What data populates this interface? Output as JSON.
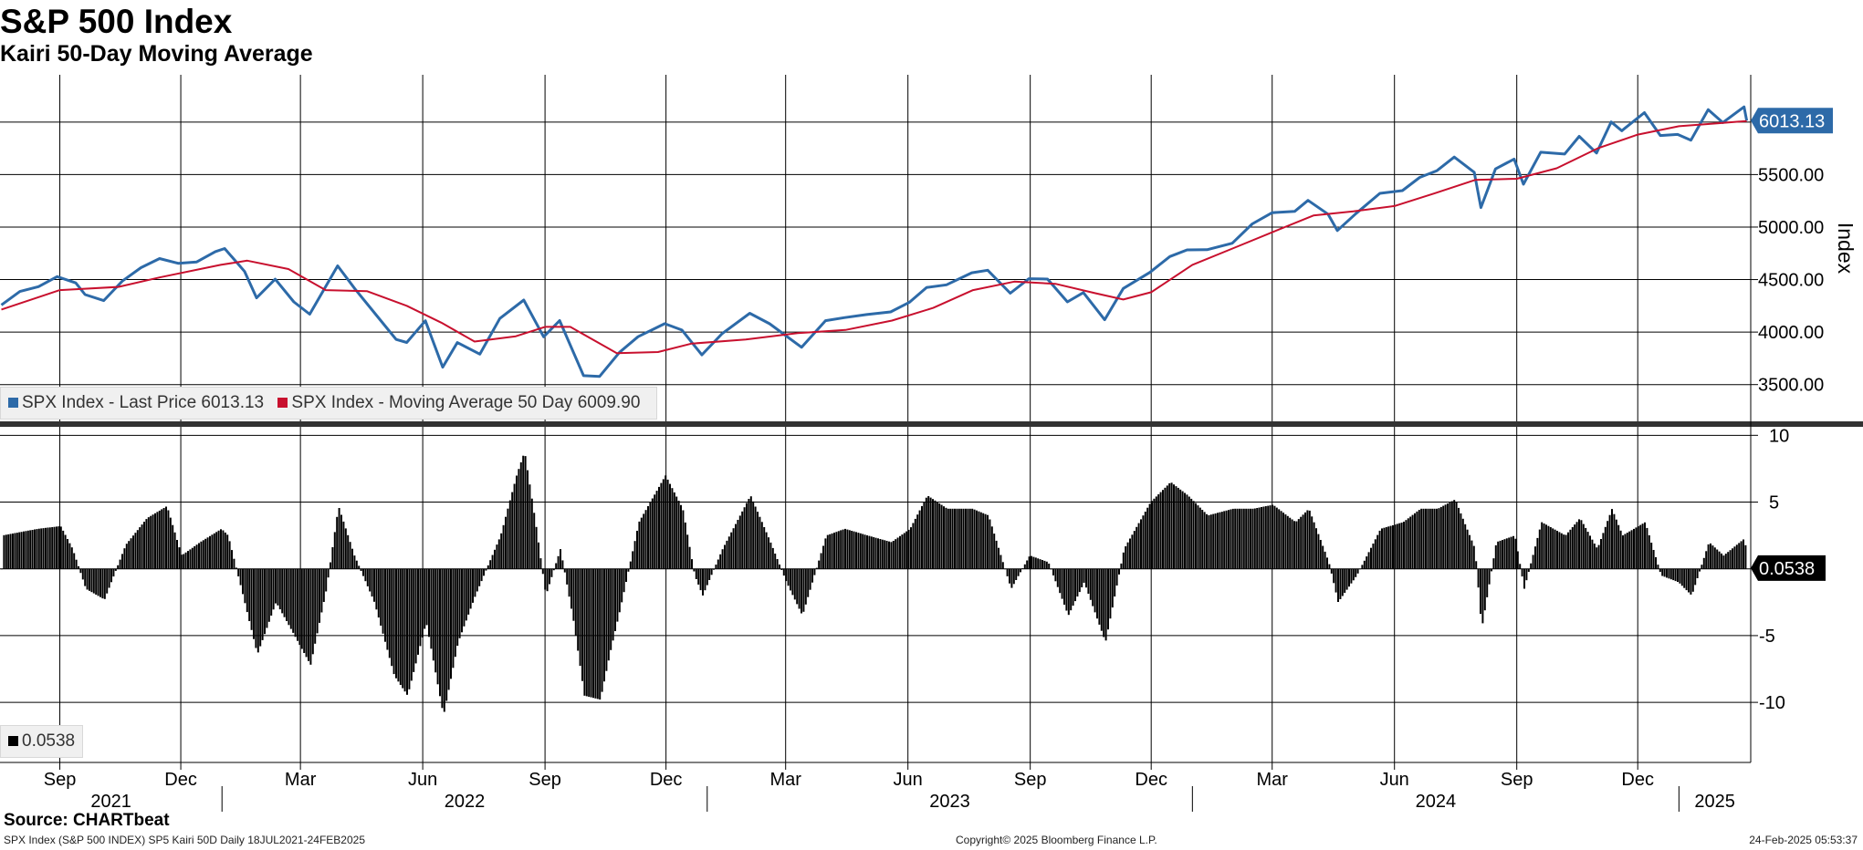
{
  "header": {
    "title": "S&P 500 Index",
    "subtitle": "Kairi 50-Day Moving Average"
  },
  "legend_top": {
    "items": [
      {
        "label": "SPX Index - Last Price 6013.13",
        "color": "#2d6aa8"
      },
      {
        "label": "SPX Index - Moving Average 50 Day 6009.90",
        "color": "#c8102e"
      }
    ]
  },
  "legend_bottom": {
    "items": [
      {
        "label": "0.0538",
        "color": "#000000"
      }
    ]
  },
  "footer": {
    "source": "Source: CHARTbeat",
    "left": "SPX Index (S&P 500 INDEX) SP5 Kairi 50D  Daily 18JUL2021-24FEB2025",
    "center": "Copyright© 2025 Bloomberg Finance L.P.",
    "right": "24-Feb-2025 05:53:37"
  },
  "chart_data": [
    {
      "type": "line",
      "ylabel": "Index",
      "ylim": [
        3150,
        6450
      ],
      "yticks": [
        "3500.00",
        "4000.00",
        "4500.00",
        "5000.00",
        "5500.00"
      ],
      "last_value_label": "6013.13",
      "last_value": 6013.13,
      "grid": true,
      "x_range": [
        "2021-07-18",
        "2025-02-24"
      ],
      "series": [
        {
          "name": "SPX Index - Last Price",
          "color": "#2d6aa8",
          "points": [
            [
              "2021-07-19",
              4258
            ],
            [
              "2021-08-02",
              4387
            ],
            [
              "2021-08-16",
              4433
            ],
            [
              "2021-08-30",
              4528
            ],
            [
              "2021-09-13",
              4468
            ],
            [
              "2021-09-20",
              4357
            ],
            [
              "2021-10-04",
              4300
            ],
            [
              "2021-10-18",
              4486
            ],
            [
              "2021-11-01",
              4613
            ],
            [
              "2021-11-15",
              4700
            ],
            [
              "2021-11-29",
              4655
            ],
            [
              "2021-12-13",
              4668
            ],
            [
              "2021-12-27",
              4766
            ],
            [
              "2022-01-03",
              4796
            ],
            [
              "2022-01-18",
              4577
            ],
            [
              "2022-01-27",
              4326
            ],
            [
              "2022-02-10",
              4504
            ],
            [
              "2022-02-24",
              4288
            ],
            [
              "2022-03-08",
              4170
            ],
            [
              "2022-03-29",
              4631
            ],
            [
              "2022-04-11",
              4412
            ],
            [
              "2022-04-29",
              4131
            ],
            [
              "2022-05-12",
              3930
            ],
            [
              "2022-05-20",
              3901
            ],
            [
              "2022-06-03",
              4108
            ],
            [
              "2022-06-16",
              3666
            ],
            [
              "2022-06-27",
              3900
            ],
            [
              "2022-07-14",
              3790
            ],
            [
              "2022-07-29",
              4130
            ],
            [
              "2022-08-16",
              4305
            ],
            [
              "2022-08-31",
              3955
            ],
            [
              "2022-09-12",
              4110
            ],
            [
              "2022-09-30",
              3585
            ],
            [
              "2022-10-12",
              3577
            ],
            [
              "2022-10-27",
              3807
            ],
            [
              "2022-11-10",
              3956
            ],
            [
              "2022-11-30",
              4080
            ],
            [
              "2022-12-13",
              4019
            ],
            [
              "2022-12-28",
              3783
            ],
            [
              "2023-01-12",
              3983
            ],
            [
              "2023-02-02",
              4179
            ],
            [
              "2023-02-17",
              4079
            ],
            [
              "2023-03-13",
              3855
            ],
            [
              "2023-03-31",
              4109
            ],
            [
              "2023-04-14",
              4137
            ],
            [
              "2023-05-01",
              4167
            ],
            [
              "2023-05-19",
              4192
            ],
            [
              "2023-06-02",
              4282
            ],
            [
              "2023-06-15",
              4425
            ],
            [
              "2023-06-30",
              4450
            ],
            [
              "2023-07-19",
              4565
            ],
            [
              "2023-07-31",
              4589
            ],
            [
              "2023-08-17",
              4370
            ],
            [
              "2023-08-31",
              4508
            ],
            [
              "2023-09-14",
              4505
            ],
            [
              "2023-09-29",
              4288
            ],
            [
              "2023-10-11",
              4376
            ],
            [
              "2023-10-27",
              4117
            ],
            [
              "2023-11-10",
              4415
            ],
            [
              "2023-11-30",
              4568
            ],
            [
              "2023-12-15",
              4719
            ],
            [
              "2023-12-28",
              4783
            ],
            [
              "2024-01-12",
              4784
            ],
            [
              "2024-01-31",
              4846
            ],
            [
              "2024-02-15",
              5030
            ],
            [
              "2024-03-01",
              5137
            ],
            [
              "2024-03-18",
              5150
            ],
            [
              "2024-03-28",
              5254
            ],
            [
              "2024-04-12",
              5123
            ],
            [
              "2024-04-19",
              4967
            ],
            [
              "2024-05-03",
              5128
            ],
            [
              "2024-05-21",
              5321
            ],
            [
              "2024-06-07",
              5347
            ],
            [
              "2024-06-20",
              5473
            ],
            [
              "2024-07-03",
              5537
            ],
            [
              "2024-07-16",
              5667
            ],
            [
              "2024-07-31",
              5522
            ],
            [
              "2024-08-05",
              5186
            ],
            [
              "2024-08-16",
              5554
            ],
            [
              "2024-08-30",
              5648
            ],
            [
              "2024-09-06",
              5408
            ],
            [
              "2024-09-19",
              5713
            ],
            [
              "2024-10-07",
              5695
            ],
            [
              "2024-10-18",
              5864
            ],
            [
              "2024-10-31",
              5705
            ],
            [
              "2024-11-11",
              6001
            ],
            [
              "2024-11-19",
              5917
            ],
            [
              "2024-12-06",
              6090
            ],
            [
              "2024-12-18",
              5872
            ],
            [
              "2024-12-31",
              5882
            ],
            [
              "2025-01-10",
              5827
            ],
            [
              "2025-01-23",
              6118
            ],
            [
              "2025-02-03",
              5995
            ],
            [
              "2025-02-19",
              6144
            ],
            [
              "2025-02-21",
              6013
            ]
          ]
        },
        {
          "name": "SPX Index - Moving Average 50 Day",
          "color": "#c8102e",
          "points": [
            [
              "2021-07-19",
              4215
            ],
            [
              "2021-09-01",
              4400
            ],
            [
              "2021-10-15",
              4430
            ],
            [
              "2021-11-15",
              4520
            ],
            [
              "2021-12-31",
              4640
            ],
            [
              "2022-01-20",
              4680
            ],
            [
              "2022-02-20",
              4600
            ],
            [
              "2022-03-20",
              4400
            ],
            [
              "2022-04-20",
              4390
            ],
            [
              "2022-05-20",
              4250
            ],
            [
              "2022-06-15",
              4090
            ],
            [
              "2022-07-10",
              3910
            ],
            [
              "2022-08-10",
              3960
            ],
            [
              "2022-09-01",
              4050
            ],
            [
              "2022-09-20",
              4050
            ],
            [
              "2022-10-25",
              3800
            ],
            [
              "2022-11-25",
              3810
            ],
            [
              "2022-12-20",
              3890
            ],
            [
              "2023-01-30",
              3930
            ],
            [
              "2023-03-10",
              3990
            ],
            [
              "2023-04-15",
              4020
            ],
            [
              "2023-05-20",
              4110
            ],
            [
              "2023-06-20",
              4230
            ],
            [
              "2023-07-20",
              4400
            ],
            [
              "2023-08-20",
              4480
            ],
            [
              "2023-09-20",
              4460
            ],
            [
              "2023-10-20",
              4370
            ],
            [
              "2023-11-10",
              4310
            ],
            [
              "2023-12-01",
              4380
            ],
            [
              "2024-01-01",
              4640
            ],
            [
              "2024-02-01",
              4800
            ],
            [
              "2024-03-01",
              4950
            ],
            [
              "2024-04-01",
              5110
            ],
            [
              "2024-05-01",
              5150
            ],
            [
              "2024-06-01",
              5200
            ],
            [
              "2024-07-01",
              5320
            ],
            [
              "2024-08-01",
              5450
            ],
            [
              "2024-09-01",
              5460
            ],
            [
              "2024-10-01",
              5560
            ],
            [
              "2024-11-01",
              5750
            ],
            [
              "2024-12-01",
              5880
            ],
            [
              "2025-01-01",
              5960
            ],
            [
              "2025-02-01",
              5990
            ],
            [
              "2025-02-21",
              6010
            ]
          ]
        }
      ]
    },
    {
      "type": "bar",
      "name": "SPX Index Kairi 50D",
      "ylim": [
        -14.5,
        10.5
      ],
      "yticks": [
        "10",
        "5",
        "0",
        "-5",
        "-10"
      ],
      "last_value_label": "0.0538",
      "last_value": 0.0538,
      "color": "#000000",
      "points": [
        [
          "2021-07-19",
          2.5
        ],
        [
          "2021-08-15",
          3.0
        ],
        [
          "2021-09-01",
          3.2
        ],
        [
          "2021-09-10",
          1.5
        ],
        [
          "2021-09-20",
          -1.5
        ],
        [
          "2021-10-04",
          -2.3
        ],
        [
          "2021-10-20",
          1.8
        ],
        [
          "2021-11-05",
          3.8
        ],
        [
          "2021-11-20",
          4.7
        ],
        [
          "2021-12-01",
          1.0
        ],
        [
          "2021-12-15",
          2.0
        ],
        [
          "2021-12-31",
          3.0
        ],
        [
          "2022-01-05",
          2.5
        ],
        [
          "2022-01-15",
          -1.5
        ],
        [
          "2022-01-27",
          -6.4
        ],
        [
          "2022-02-10",
          -2.5
        ],
        [
          "2022-02-24",
          -5.0
        ],
        [
          "2022-03-08",
          -7.2
        ],
        [
          "2022-03-20",
          -1.5
        ],
        [
          "2022-03-29",
          4.7
        ],
        [
          "2022-04-10",
          1.0
        ],
        [
          "2022-04-25",
          -2.5
        ],
        [
          "2022-05-10",
          -8.0
        ],
        [
          "2022-05-20",
          -9.5
        ],
        [
          "2022-06-03",
          -4.0
        ],
        [
          "2022-06-16",
          -11.0
        ],
        [
          "2022-06-27",
          -5.5
        ],
        [
          "2022-07-10",
          -2.0
        ],
        [
          "2022-07-29",
          2.5
        ],
        [
          "2022-08-10",
          7.0
        ],
        [
          "2022-08-16",
          8.8
        ],
        [
          "2022-08-25",
          3.0
        ],
        [
          "2022-09-01",
          -2.0
        ],
        [
          "2022-09-12",
          1.5
        ],
        [
          "2022-09-22",
          -4.0
        ],
        [
          "2022-09-30",
          -9.5
        ],
        [
          "2022-10-12",
          -9.8
        ],
        [
          "2022-10-20",
          -6.0
        ],
        [
          "2022-10-27",
          -3.0
        ],
        [
          "2022-11-10",
          3.5
        ],
        [
          "2022-11-30",
          7.0
        ],
        [
          "2022-12-13",
          4.5
        ],
        [
          "2022-12-22",
          -0.5
        ],
        [
          "2022-12-28",
          -2.0
        ],
        [
          "2023-01-12",
          1.5
        ],
        [
          "2023-02-02",
          5.5
        ],
        [
          "2023-02-17",
          2.0
        ],
        [
          "2023-03-01",
          -1.0
        ],
        [
          "2023-03-13",
          -3.5
        ],
        [
          "2023-03-31",
          2.5
        ],
        [
          "2023-04-14",
          3.0
        ],
        [
          "2023-05-01",
          2.5
        ],
        [
          "2023-05-19",
          2.0
        ],
        [
          "2023-06-02",
          3.0
        ],
        [
          "2023-06-15",
          5.5
        ],
        [
          "2023-06-30",
          4.5
        ],
        [
          "2023-07-19",
          4.5
        ],
        [
          "2023-07-31",
          4.0
        ],
        [
          "2023-08-17",
          -1.5
        ],
        [
          "2023-08-31",
          1.0
        ],
        [
          "2023-09-14",
          0.5
        ],
        [
          "2023-09-29",
          -3.5
        ],
        [
          "2023-10-11",
          -1.0
        ],
        [
          "2023-10-27",
          -5.5
        ],
        [
          "2023-11-10",
          1.5
        ],
        [
          "2023-11-30",
          5.0
        ],
        [
          "2023-12-15",
          6.5
        ],
        [
          "2023-12-28",
          5.5
        ],
        [
          "2024-01-12",
          4.0
        ],
        [
          "2024-01-31",
          4.5
        ],
        [
          "2024-02-15",
          4.5
        ],
        [
          "2024-03-01",
          4.8
        ],
        [
          "2024-03-18",
          3.5
        ],
        [
          "2024-03-28",
          4.5
        ],
        [
          "2024-04-12",
          0.5
        ],
        [
          "2024-04-19",
          -2.5
        ],
        [
          "2024-05-03",
          -0.5
        ],
        [
          "2024-05-21",
          3.0
        ],
        [
          "2024-06-07",
          3.5
        ],
        [
          "2024-06-20",
          4.5
        ],
        [
          "2024-07-03",
          4.5
        ],
        [
          "2024-07-16",
          5.2
        ],
        [
          "2024-07-31",
          1.5
        ],
        [
          "2024-08-05",
          -4.5
        ],
        [
          "2024-08-16",
          2.0
        ],
        [
          "2024-08-30",
          2.5
        ],
        [
          "2024-09-06",
          -1.5
        ],
        [
          "2024-09-19",
          3.5
        ],
        [
          "2024-10-07",
          2.5
        ],
        [
          "2024-10-18",
          3.8
        ],
        [
          "2024-10-31",
          1.5
        ],
        [
          "2024-11-11",
          4.5
        ],
        [
          "2024-11-19",
          2.5
        ],
        [
          "2024-12-06",
          3.5
        ],
        [
          "2024-12-18",
          -0.5
        ],
        [
          "2024-12-31",
          -1.0
        ],
        [
          "2025-01-10",
          -2.0
        ],
        [
          "2025-01-23",
          2.0
        ],
        [
          "2025-02-03",
          1.0
        ],
        [
          "2025-02-19",
          2.3
        ],
        [
          "2025-02-21",
          0.05
        ]
      ]
    }
  ],
  "x_axis": {
    "month_ticks": [
      {
        "label": "Sep",
        "date": "2021-09-01"
      },
      {
        "label": "Dec",
        "date": "2021-12-01"
      },
      {
        "label": "Mar",
        "date": "2022-03-01"
      },
      {
        "label": "Jun",
        "date": "2022-06-01"
      },
      {
        "label": "Sep",
        "date": "2022-09-01"
      },
      {
        "label": "Dec",
        "date": "2022-12-01"
      },
      {
        "label": "Mar",
        "date": "2023-03-01"
      },
      {
        "label": "Jun",
        "date": "2023-06-01"
      },
      {
        "label": "Sep",
        "date": "2023-09-01"
      },
      {
        "label": "Dec",
        "date": "2023-12-01"
      },
      {
        "label": "Mar",
        "date": "2024-03-01"
      },
      {
        "label": "Jun",
        "date": "2024-06-01"
      },
      {
        "label": "Sep",
        "date": "2024-09-01"
      },
      {
        "label": "Dec",
        "date": "2024-12-01"
      }
    ],
    "year_labels": [
      {
        "label": "2021",
        "date": "2021-07-18",
        "end": "2022-01-01"
      },
      {
        "label": "2022",
        "date": "2022-01-01",
        "end": "2023-01-01"
      },
      {
        "label": "2023",
        "date": "2023-01-01",
        "end": "2024-01-01"
      },
      {
        "label": "2024",
        "date": "2024-01-01",
        "end": "2025-01-01"
      },
      {
        "label": "2025",
        "date": "2025-01-01",
        "end": "2025-02-24"
      }
    ]
  }
}
